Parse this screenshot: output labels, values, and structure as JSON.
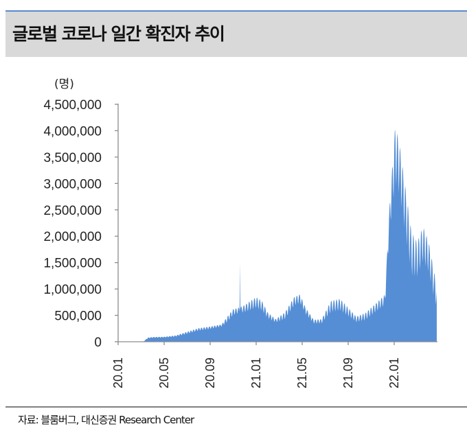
{
  "header": {
    "title": "글로벌 코로나 일간 확진자 추이"
  },
  "footer": {
    "source": "자료: 블룸버그, 대신증권 Research Center"
  },
  "chart_data": {
    "type": "area",
    "title": "글로벌 코로나 일간 확진자 추이",
    "ylabel": "(명)",
    "xlabel": "",
    "ylim": [
      0,
      4500000
    ],
    "yticks": [
      0,
      500000,
      1000000,
      1500000,
      2000000,
      2500000,
      3000000,
      3500000,
      4000000,
      4500000
    ],
    "ytick_labels": [
      "0",
      "500,000",
      "1,000,000",
      "1,500,000",
      "2,000,000",
      "2,500,000",
      "3,000,000",
      "3,500,000",
      "4,000,000",
      "4,500,000"
    ],
    "x_unit": "months since 2020-01",
    "xlim": [
      0,
      27.7
    ],
    "xticks": [
      0,
      4,
      8,
      12,
      16,
      20,
      24
    ],
    "xtick_labels": [
      "20.01",
      "20.05",
      "20.09",
      "21.01",
      "21.05",
      "21.09",
      "22.01"
    ],
    "color": "#558ed5",
    "series_envelope_note": "daily values oscillate weekly between low and high",
    "points": [
      {
        "x": 0,
        "low": 0,
        "high": 0
      },
      {
        "x": 1.5,
        "low": 0,
        "high": 0
      },
      {
        "x": 2.2,
        "low": 0,
        "high": 5000
      },
      {
        "x": 2.6,
        "low": 60000,
        "high": 80000
      },
      {
        "x": 3,
        "low": 70000,
        "high": 90000
      },
      {
        "x": 4,
        "low": 75000,
        "high": 95000
      },
      {
        "x": 5,
        "low": 90000,
        "high": 120000
      },
      {
        "x": 6,
        "low": 140000,
        "high": 190000
      },
      {
        "x": 7,
        "low": 200000,
        "high": 260000
      },
      {
        "x": 8,
        "low": 230000,
        "high": 290000
      },
      {
        "x": 9,
        "low": 280000,
        "high": 330000
      },
      {
        "x": 9.5,
        "low": 350000,
        "high": 480000
      },
      {
        "x": 10,
        "low": 480000,
        "high": 620000
      },
      {
        "x": 10.5,
        "low": 520000,
        "high": 650000
      },
      {
        "x": 11,
        "low": 530000,
        "high": 700000
      },
      {
        "x": 11.5,
        "low": 560000,
        "high": 780000
      },
      {
        "x": 12,
        "low": 600000,
        "high": 850000
      },
      {
        "x": 12.5,
        "low": 550000,
        "high": 780000
      },
      {
        "x": 13,
        "low": 420000,
        "high": 560000
      },
      {
        "x": 13.7,
        "low": 350000,
        "high": 430000
      },
      {
        "x": 14.5,
        "low": 400000,
        "high": 560000
      },
      {
        "x": 15.3,
        "low": 650000,
        "high": 850000
      },
      {
        "x": 15.8,
        "low": 700000,
        "high": 900000
      },
      {
        "x": 16.3,
        "low": 500000,
        "high": 650000
      },
      {
        "x": 17,
        "low": 330000,
        "high": 420000
      },
      {
        "x": 17.7,
        "low": 330000,
        "high": 430000
      },
      {
        "x": 18.5,
        "low": 520000,
        "high": 780000
      },
      {
        "x": 19.3,
        "low": 550000,
        "high": 820000
      },
      {
        "x": 20,
        "low": 450000,
        "high": 650000
      },
      {
        "x": 20.7,
        "low": 350000,
        "high": 480000
      },
      {
        "x": 21.5,
        "low": 380000,
        "high": 550000
      },
      {
        "x": 22.5,
        "low": 550000,
        "high": 750000
      },
      {
        "x": 23.2,
        "low": 650000,
        "high": 900000
      },
      {
        "x": 23.6,
        "low": 2000000,
        "high": 2600000
      },
      {
        "x": 24.1,
        "low": 2800000,
        "high": 4150000
      },
      {
        "x": 24.5,
        "low": 2600000,
        "high": 3700000
      },
      {
        "x": 25,
        "low": 1800000,
        "high": 2900000
      },
      {
        "x": 25.5,
        "low": 1100000,
        "high": 2100000
      },
      {
        "x": 26,
        "low": 1100000,
        "high": 1900000
      },
      {
        "x": 26.5,
        "low": 1400000,
        "high": 2200000
      },
      {
        "x": 27,
        "low": 1200000,
        "high": 1900000
      },
      {
        "x": 27.5,
        "low": 700000,
        "high": 1300000
      },
      {
        "x": 27.7,
        "low": 600000,
        "high": 1000000
      }
    ],
    "spikes": [
      {
        "x": 10.6,
        "value": 1500000
      }
    ]
  }
}
